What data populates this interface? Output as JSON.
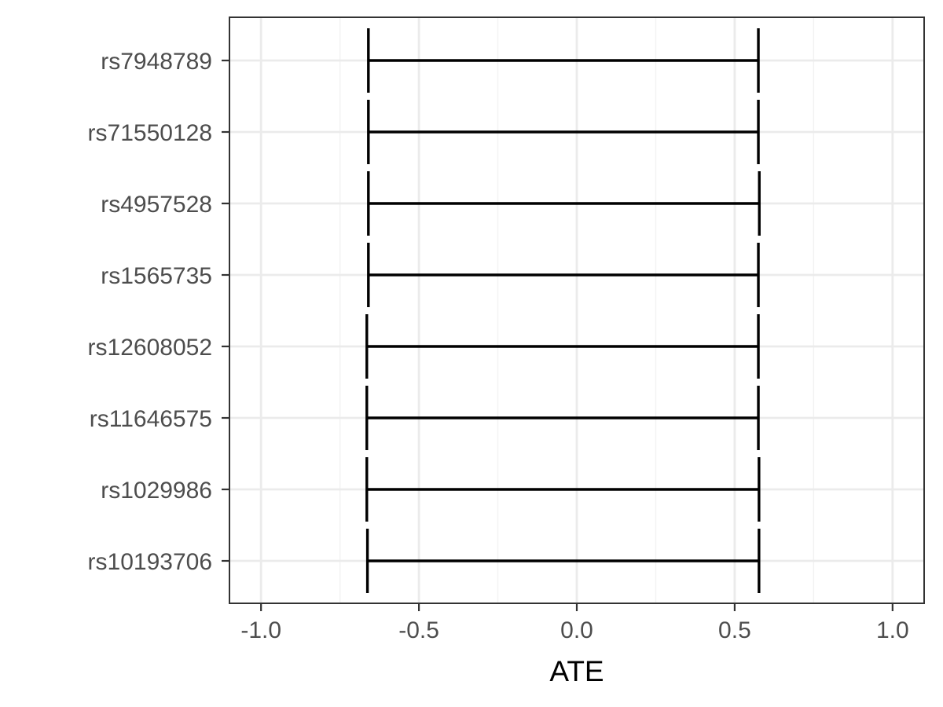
{
  "chart_data": {
    "type": "errorbar",
    "title": "",
    "xlabel": "ATE",
    "ylabel": "",
    "xlim": [
      -1.1,
      1.1
    ],
    "x_ticks": [
      -1.0,
      -0.5,
      0.0,
      0.5,
      1.0
    ],
    "x_tick_labels": [
      "-1.0",
      "-0.5",
      "0.0",
      "0.5",
      "1.0"
    ],
    "grid": true,
    "legend": "none",
    "categories": [
      "rs7948789",
      "rs71550128",
      "rs4957528",
      "rs1565735",
      "rs12608052",
      "rs11646575",
      "rs1029986",
      "rs10193706"
    ],
    "intervals": [
      {
        "label": "rs7948789",
        "lower": -0.66,
        "upper": 0.575
      },
      {
        "label": "rs71550128",
        "lower": -0.66,
        "upper": 0.575
      },
      {
        "label": "rs4957528",
        "lower": -0.66,
        "upper": 0.578
      },
      {
        "label": "rs1565735",
        "lower": -0.66,
        "upper": 0.575
      },
      {
        "label": "rs12608052",
        "lower": -0.665,
        "upper": 0.575
      },
      {
        "label": "rs11646575",
        "lower": -0.665,
        "upper": 0.575
      },
      {
        "label": "rs1029986",
        "lower": -0.665,
        "upper": 0.577
      },
      {
        "label": "rs10193706",
        "lower": -0.663,
        "upper": 0.577
      }
    ],
    "colors": {
      "panel_border": "#333333",
      "grid_major": "#ebebeb",
      "grid_minor": "#f2f2f2",
      "bar": "#000000",
      "tick_text": "#4d4d4d",
      "axis_title": "#000000"
    }
  }
}
